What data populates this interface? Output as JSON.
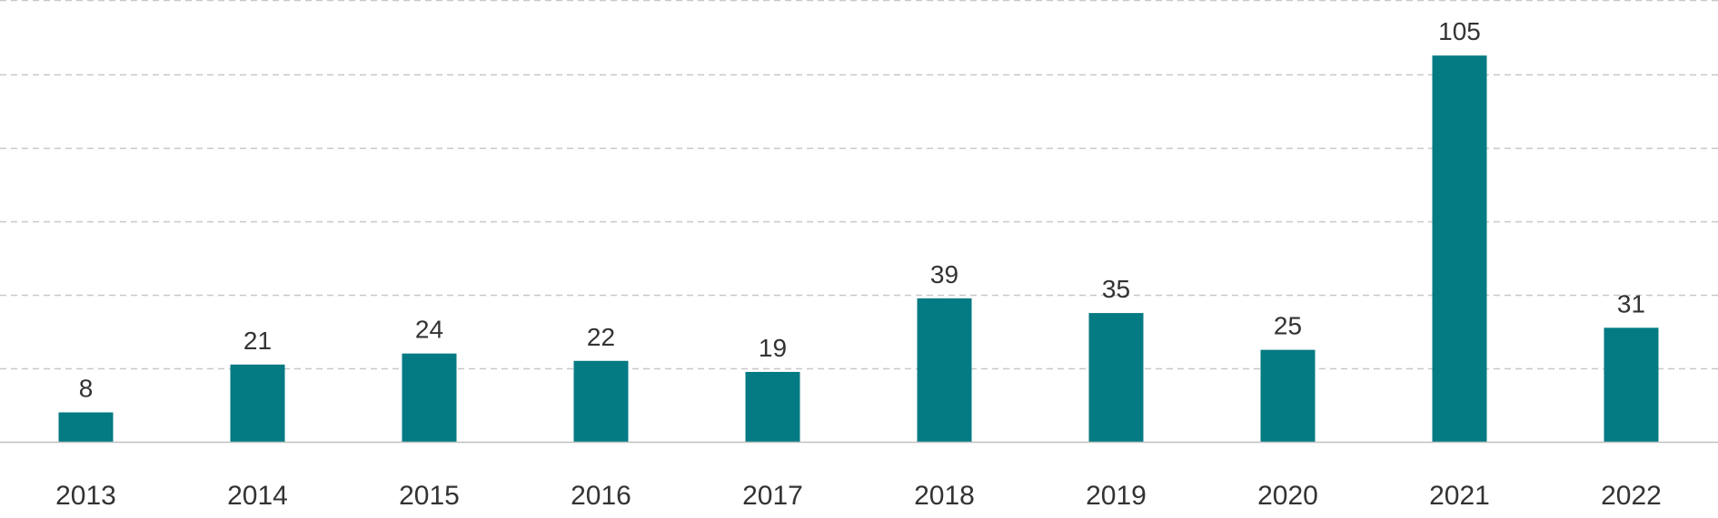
{
  "chart_data": {
    "type": "bar",
    "categories": [
      "2013",
      "2014",
      "2015",
      "2016",
      "2017",
      "2018",
      "2019",
      "2020",
      "2021",
      "2022"
    ],
    "values": [
      8,
      21,
      24,
      22,
      19,
      39,
      35,
      25,
      105,
      31
    ],
    "ylim": [
      0,
      120
    ],
    "grid": true,
    "grid_style": "dashed",
    "data_labels": true,
    "colors": {
      "bar": "#047A83",
      "grid": "#C8C8C8",
      "axis": "#BFBFBF",
      "text": "#333333"
    }
  }
}
